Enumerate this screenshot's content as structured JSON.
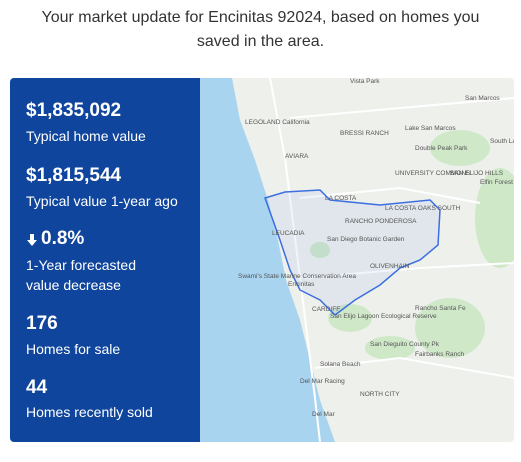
{
  "header": {
    "title": "Your market update for Encinitas 92024, based on homes you saved in the area."
  },
  "stats": [
    {
      "value": "$1,835,092",
      "label": "Typical home value"
    },
    {
      "value": "$1,815,544",
      "label": "Typical value 1-year ago"
    },
    {
      "value": "0.8%",
      "label": "1-Year forecasted value decrease"
    },
    {
      "value": "176",
      "label": "Homes for sale"
    },
    {
      "value": "44",
      "label": "Homes recently sold"
    }
  ],
  "map": {
    "labels": [
      "Vista Park",
      "San Marcos",
      "LEGOLAND California",
      "BRESSI RANCH",
      "Lake San Marcos",
      "Double Peak Park",
      "South Lake",
      "AVIARA",
      "UNIVERSITY COMMONS",
      "SAN ELIJO HILLS",
      "Elfin Forest",
      "LA COSTA",
      "LA COSTA OAKS SOUTH",
      "RANCHO PONDEROSA",
      "LEUCADIA",
      "San Diego Botanic Garden",
      "OLIVENHAIN",
      "Swami's State Marine Conservation Area",
      "Encinitas",
      "Rancho Santa Fe",
      "CARDIFF",
      "San Elijo Lagoon Ecological Reserve",
      "San Dieguito County Pk",
      "Fairbanks Ranch",
      "Solana Beach",
      "Del Mar Racing",
      "Del Mar",
      "NORTH CITY"
    ]
  }
}
